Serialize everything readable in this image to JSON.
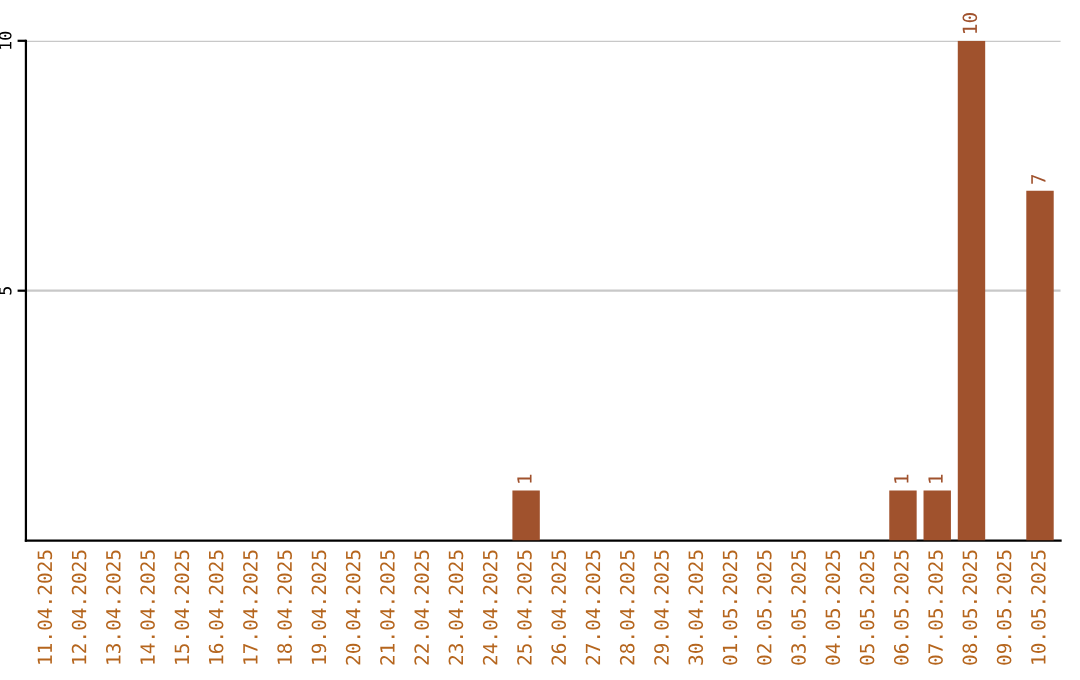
{
  "chart_data": {
    "type": "bar",
    "categories": [
      "11.04.2025",
      "12.04.2025",
      "13.04.2025",
      "14.04.2025",
      "15.04.2025",
      "16.04.2025",
      "17.04.2025",
      "18.04.2025",
      "19.04.2025",
      "20.04.2025",
      "21.04.2025",
      "22.04.2025",
      "23.04.2025",
      "24.04.2025",
      "25.04.2025",
      "26.04.2025",
      "27.04.2025",
      "28.04.2025",
      "29.04.2025",
      "30.04.2025",
      "01.05.2025",
      "02.05.2025",
      "03.05.2025",
      "04.05.2025",
      "05.05.2025",
      "06.05.2025",
      "07.05.2025",
      "08.05.2025",
      "09.05.2025",
      "10.05.2025"
    ],
    "values": [
      0,
      0,
      0,
      0,
      0,
      0,
      0,
      0,
      0,
      0,
      0,
      0,
      0,
      0,
      1,
      0,
      0,
      0,
      0,
      0,
      0,
      0,
      0,
      0,
      0,
      1,
      1,
      10,
      0,
      7
    ],
    "value_labels": [
      null,
      null,
      null,
      null,
      null,
      null,
      null,
      null,
      null,
      null,
      null,
      null,
      null,
      null,
      "1",
      null,
      null,
      null,
      null,
      null,
      null,
      null,
      null,
      null,
      null,
      "1",
      "1",
      "10",
      null,
      "7"
    ],
    "color": "#a0522d",
    "ylim": [
      0,
      10
    ],
    "yticks": [
      5,
      10
    ],
    "grid": "y"
  }
}
